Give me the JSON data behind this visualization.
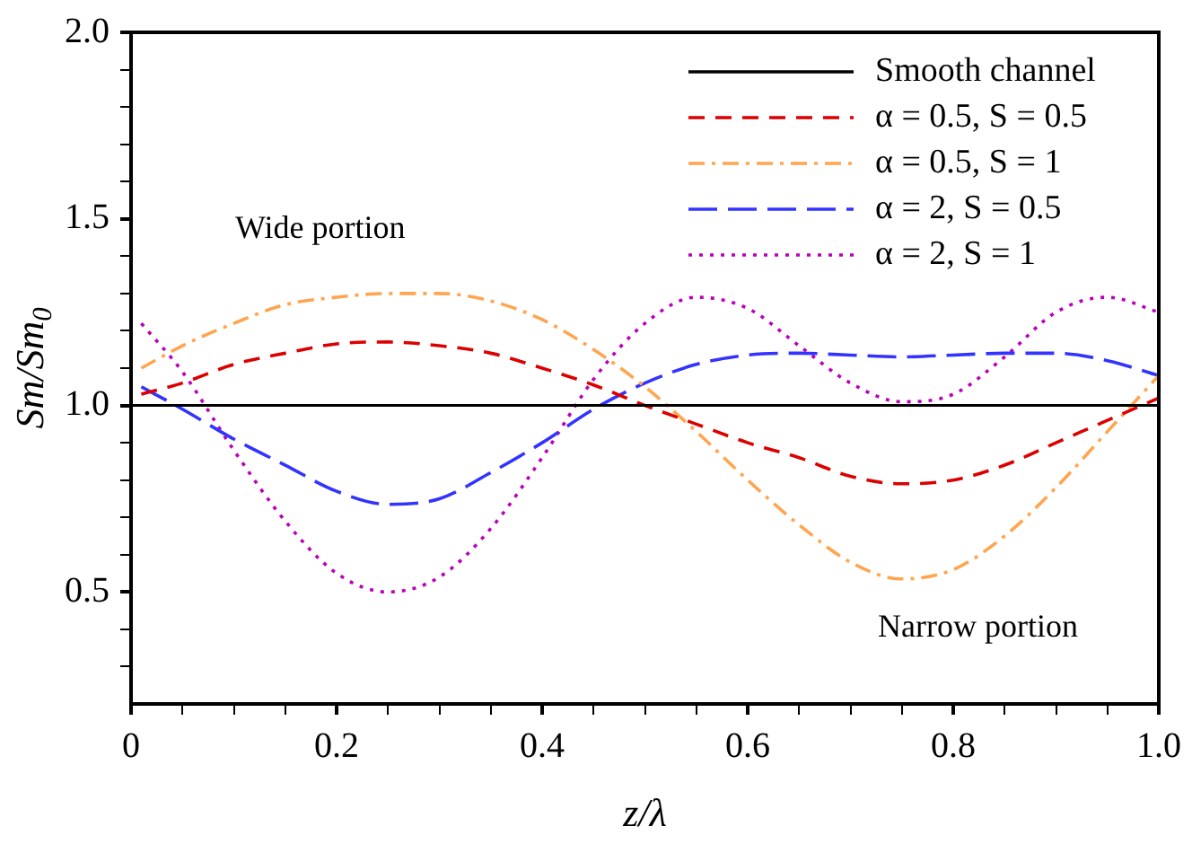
{
  "chart_data": {
    "type": "line",
    "xlabel": "z/λ",
    "ylabel": "Sm/Sm$_{0}$",
    "annotations": [
      "Wide portion",
      "Narrow portion"
    ],
    "x": [
      0.01,
      0.05,
      0.1,
      0.15,
      0.2,
      0.25,
      0.3,
      0.35,
      0.4,
      0.45,
      0.5,
      0.55,
      0.6,
      0.65,
      0.7,
      0.75,
      0.8,
      0.85,
      0.9,
      0.95,
      1.0
    ],
    "series": [
      {
        "name": "Smooth channel",
        "color": "#000000",
        "line_style": "solid",
        "x": [
          0,
          1
        ],
        "values": [
          1,
          1
        ]
      },
      {
        "name": "α = 0.5, S = 0.5",
        "color": "#dd0000",
        "line_style": "dashed",
        "values": [
          1.03,
          1.06,
          1.11,
          1.14,
          1.165,
          1.17,
          1.16,
          1.14,
          1.1,
          1.055,
          1.0,
          0.95,
          0.9,
          0.86,
          0.81,
          0.79,
          0.8,
          0.84,
          0.9,
          0.96,
          1.02
        ]
      },
      {
        "name": "α = 0.5, S = 1",
        "color": "#ffa54f",
        "line_style": "dashdot",
        "values": [
          1.1,
          1.16,
          1.22,
          1.27,
          1.29,
          1.3,
          1.3,
          1.28,
          1.23,
          1.15,
          1.05,
          0.93,
          0.8,
          0.68,
          0.58,
          0.535,
          0.56,
          0.65,
          0.78,
          0.93,
          1.08
        ]
      },
      {
        "name": "α = 2, S = 0.5",
        "color": "#3333ff",
        "line_style": "longdash",
        "values": [
          1.05,
          0.99,
          0.91,
          0.84,
          0.77,
          0.735,
          0.75,
          0.82,
          0.9,
          0.99,
          1.06,
          1.11,
          1.135,
          1.14,
          1.135,
          1.13,
          1.135,
          1.14,
          1.14,
          1.12,
          1.08
        ]
      },
      {
        "name": "α = 2, S = 1",
        "color": "#bb00bb",
        "line_style": "dotted",
        "values": [
          1.22,
          1.09,
          0.88,
          0.69,
          0.55,
          0.5,
          0.54,
          0.67,
          0.86,
          1.07,
          1.22,
          1.29,
          1.26,
          1.16,
          1.06,
          1.01,
          1.03,
          1.13,
          1.25,
          1.29,
          1.25
        ]
      }
    ],
    "xlim": [
      0,
      1
    ],
    "ylim": [
      0.2,
      2.0
    ],
    "xticks": [
      0,
      {
        "value": 0.05,
        "label": null
      },
      {
        "value": 0.1,
        "label": null
      },
      {
        "value": 0.15,
        "label": null
      },
      0.2,
      {
        "value": 0.25,
        "label": null
      },
      {
        "value": 0.3,
        "label": null
      },
      {
        "value": 0.35,
        "label": null
      },
      0.4,
      {
        "value": 0.45,
        "label": null
      },
      {
        "value": 0.5,
        "label": null
      },
      {
        "value": 0.55,
        "label": null
      },
      0.6,
      {
        "value": 0.65,
        "label": null
      },
      {
        "value": 0.7,
        "label": null
      },
      {
        "value": 0.75,
        "label": null
      },
      0.8,
      {
        "value": 0.85,
        "label": null
      },
      {
        "value": 0.9,
        "label": null
      },
      {
        "value": 0.95,
        "label": null
      },
      {
        "value": 1,
        "label": "1.0"
      }
    ],
    "yticks": [
      {
        "value": 0.3,
        "label": null
      },
      {
        "value": 0.4,
        "label": null
      },
      0.5,
      {
        "value": 0.6,
        "label": null
      },
      {
        "value": 0.7,
        "label": null
      },
      {
        "value": 0.8,
        "label": null
      },
      {
        "value": 0.9,
        "label": null
      },
      {
        "value": 1,
        "label": "1.0"
      },
      {
        "value": 1.1,
        "label": null
      },
      {
        "value": 1.2,
        "label": null
      },
      {
        "value": 1.3,
        "label": null
      },
      {
        "value": 1.4,
        "label": null
      },
      1.5,
      {
        "value": 1.6,
        "label": null
      },
      {
        "value": 1.7,
        "label": null
      },
      {
        "value": 1.8,
        "label": null
      },
      {
        "value": 1.9,
        "label": null
      },
      {
        "value": 2,
        "label": "2.0"
      }
    ],
    "grid": false,
    "legend": "top right",
    "marker": "none"
  }
}
